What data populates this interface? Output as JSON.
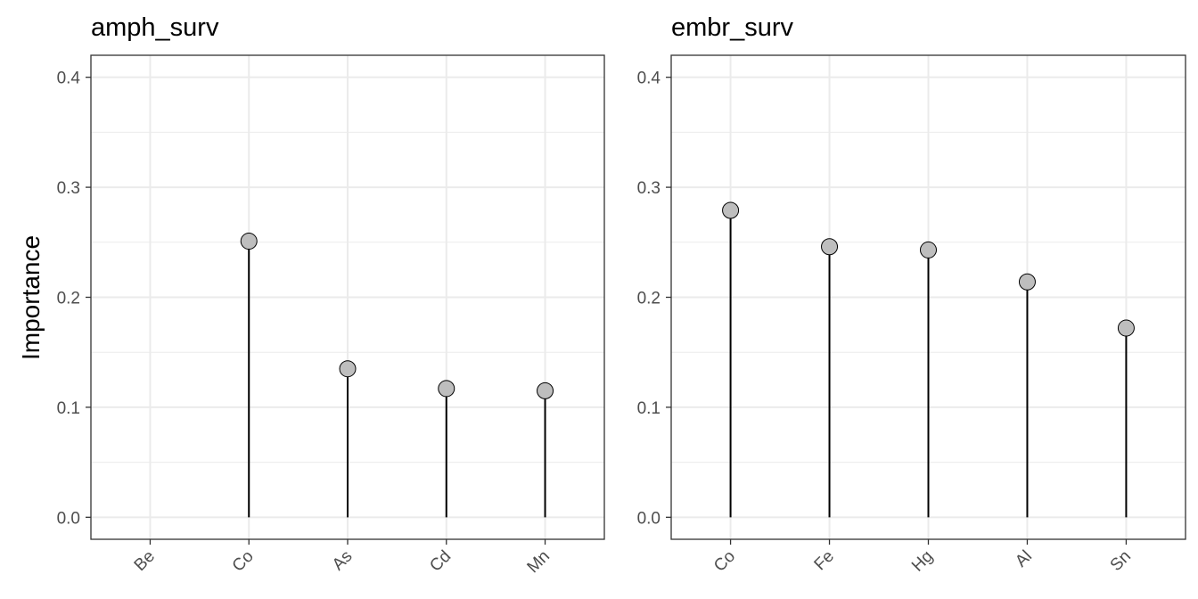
{
  "chart_data": {
    "ylabel": "Importance",
    "ylim": [
      -0.02,
      0.42
    ],
    "yticks": [
      0.0,
      0.1,
      0.2,
      0.3,
      0.4
    ],
    "ytick_labels": [
      "0.0",
      "0.1",
      "0.2",
      "0.3",
      "0.4"
    ],
    "grid": true,
    "colors": {
      "point_fill": "#bebebe",
      "stem": "#000000",
      "grid": "#ebebeb",
      "border": "#333333"
    },
    "panels": [
      {
        "type": "lollipop",
        "title": "amph_surv",
        "categories": [
          "Be",
          "Co",
          "As",
          "Cd",
          "Mn"
        ],
        "values": [
          null,
          0.251,
          0.135,
          0.117,
          0.115
        ]
      },
      {
        "type": "lollipop",
        "title": "embr_surv",
        "categories": [
          "Co",
          "Fe",
          "Hg",
          "Al",
          "Sn"
        ],
        "values": [
          0.279,
          0.246,
          0.243,
          0.214,
          0.172
        ]
      }
    ]
  }
}
